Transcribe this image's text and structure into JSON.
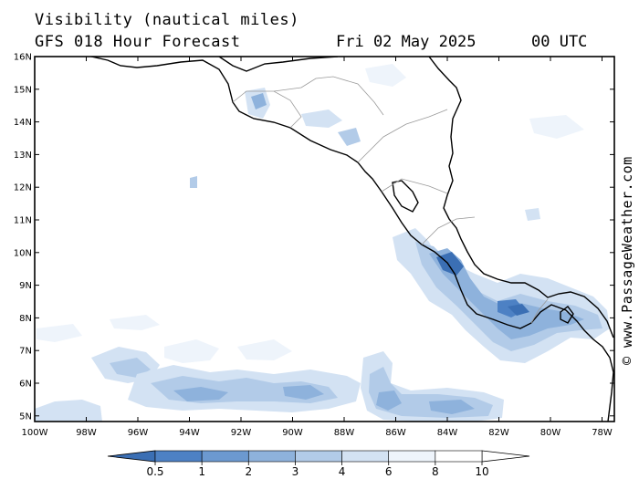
{
  "title": {
    "line1": "Visibility (nautical miles)",
    "line2": "GFS 018 Hour Forecast",
    "date": "Fri 02 May 2025",
    "time": "00 UTC"
  },
  "credit": "© www.PassageWeather.com",
  "map": {
    "lat_labels": [
      "16N",
      "15N",
      "14N",
      "13N",
      "12N",
      "11N",
      "10N",
      "9N",
      "8N",
      "7N",
      "6N",
      "5N"
    ],
    "lon_labels": [
      "100W",
      "98W",
      "96W",
      "94W",
      "92W",
      "90W",
      "88W",
      "86W",
      "84W",
      "82W",
      "80W",
      "78W"
    ],
    "lon_range": [
      -100,
      -77.3
    ],
    "lat_range": [
      4.8,
      16
    ]
  },
  "colorbar": {
    "labels": [
      "0.5",
      "1",
      "2",
      "3",
      "4",
      "6",
      "8",
      "10"
    ],
    "colors": [
      "#3b6fb4",
      "#4d81c4",
      "#6c99d0",
      "#8eb2dc",
      "#b2cbe8",
      "#d3e2f3",
      "#eef4fb",
      "#ffffff"
    ]
  }
}
